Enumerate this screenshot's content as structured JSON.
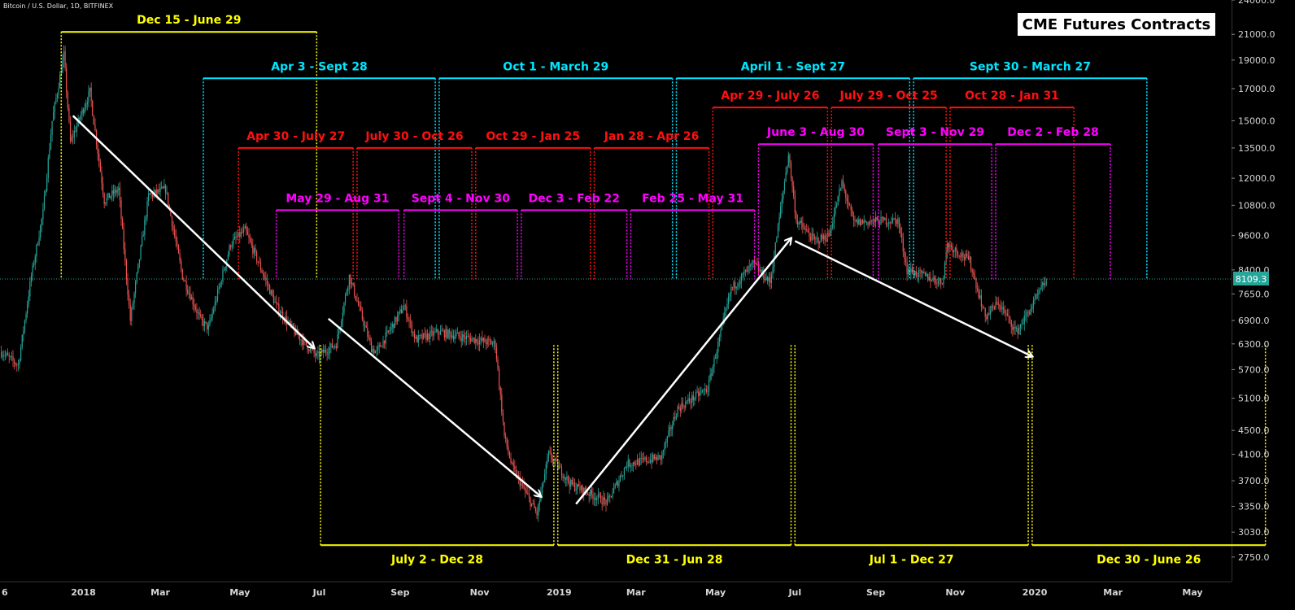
{
  "header": {
    "symbol_line": "Bitcoin / U.S. Dollar, 1D, BITFINEX"
  },
  "title": "CME Futures Contracts",
  "colors": {
    "background": "#000000",
    "yellow": "#ffff00",
    "cyan": "#00e5ff",
    "red": "#ff1010",
    "magenta": "#ff00ff",
    "candle_up": "#26a69a",
    "candle_down": "#ef5350",
    "price_line": "#26a69a",
    "arrow": "#ffffff"
  },
  "chart_data": {
    "type": "candlestick",
    "scale": "log",
    "ylim": [
      2500,
      24000
    ],
    "y_ticks": [
      "24000.0",
      "21000.0",
      "19000.0",
      "17000.0",
      "15000.0",
      "13500.0",
      "12000.0",
      "10800.0",
      "9600.0",
      "8400.0",
      "7650.0",
      "6900.0",
      "6300.0",
      "5700.0",
      "5100.0",
      "4500.0",
      "4100.0",
      "3700.0",
      "3350.0",
      "3030.0",
      "2750.0"
    ],
    "x_ticks": [
      "6",
      "2018",
      "Mar",
      "May",
      "Jul",
      "Sep",
      "Nov",
      "2019",
      "Mar",
      "May",
      "Jul",
      "Sep",
      "Nov",
      "2020",
      "Mar",
      "May"
    ],
    "x_range": [
      "2017-10-29",
      "2020-05-31"
    ],
    "last_price": {
      "value": 8109.3,
      "label": "8109.3"
    },
    "price_path": [
      [
        "2017-10-30",
        6100
      ],
      [
        "2017-11-12",
        5800
      ],
      [
        "2017-11-22",
        8200
      ],
      [
        "2017-12-01",
        10500
      ],
      [
        "2017-12-08",
        15000
      ],
      [
        "2017-12-17",
        19400
      ],
      [
        "2017-12-22",
        13800
      ],
      [
        "2018-01-06",
        16800
      ],
      [
        "2018-01-17",
        11000
      ],
      [
        "2018-01-28",
        11500
      ],
      [
        "2018-02-06",
        6900
      ],
      [
        "2018-02-20",
        11200
      ],
      [
        "2018-03-05",
        11500
      ],
      [
        "2018-03-18",
        8200
      ],
      [
        "2018-04-01",
        6900
      ],
      [
        "2018-04-07",
        6700
      ],
      [
        "2018-04-24",
        9300
      ],
      [
        "2018-05-05",
        9800
      ],
      [
        "2018-05-29",
        7300
      ],
      [
        "2018-06-12",
        6600
      ],
      [
        "2018-06-29",
        6000
      ],
      [
        "2018-07-14",
        6300
      ],
      [
        "2018-07-24",
        8200
      ],
      [
        "2018-08-10",
        6200
      ],
      [
        "2018-08-14",
        6100
      ],
      [
        "2018-09-04",
        7300
      ],
      [
        "2018-09-13",
        6400
      ],
      [
        "2018-10-01",
        6600
      ],
      [
        "2018-11-13",
        6300
      ],
      [
        "2018-11-20",
        4400
      ],
      [
        "2018-11-26",
        3900
      ],
      [
        "2018-12-15",
        3250
      ],
      [
        "2018-12-24",
        4100
      ],
      [
        "2019-01-10",
        3650
      ],
      [
        "2019-02-07",
        3400
      ],
      [
        "2019-02-22",
        3950
      ],
      [
        "2019-03-20",
        4050
      ],
      [
        "2019-04-02",
        4900
      ],
      [
        "2019-04-25",
        5300
      ],
      [
        "2019-05-13",
        7800
      ],
      [
        "2019-05-30",
        8600
      ],
      [
        "2019-06-12",
        8000
      ],
      [
        "2019-06-26",
        13200
      ],
      [
        "2019-07-02",
        10200
      ],
      [
        "2019-07-16",
        9400
      ],
      [
        "2019-07-27",
        9600
      ],
      [
        "2019-08-06",
        11800
      ],
      [
        "2019-08-15",
        10100
      ],
      [
        "2019-09-18",
        10200
      ],
      [
        "2019-09-25",
        8400
      ],
      [
        "2019-10-22",
        8000
      ],
      [
        "2019-10-26",
        9300
      ],
      [
        "2019-11-12",
        8700
      ],
      [
        "2019-11-24",
        7000
      ],
      [
        "2019-12-04",
        7400
      ],
      [
        "2019-12-18",
        6600
      ],
      [
        "2019-12-30",
        7300
      ],
      [
        "2020-01-10",
        8100
      ]
    ],
    "contracts": [
      {
        "label": "Dec 15 - June 29",
        "color": "yellow",
        "start": "2017-12-15",
        "end": "2018-06-29",
        "level": 21200,
        "label_pos": "above"
      },
      {
        "label": "July 2 - Dec 28",
        "color": "yellow",
        "start": "2018-07-02",
        "end": "2018-12-28",
        "level": 2880,
        "label_pos": "below"
      },
      {
        "label": "Dec 31 - Jun 28",
        "color": "yellow",
        "start": "2018-12-31",
        "end": "2019-06-28",
        "level": 2880,
        "label_pos": "below"
      },
      {
        "label": "Jul 1 - Dec 27",
        "color": "yellow",
        "start": "2019-07-01",
        "end": "2019-12-27",
        "level": 2880,
        "label_pos": "below"
      },
      {
        "label": "Dec 30 - June 26",
        "color": "yellow",
        "start": "2019-12-30",
        "end": "2020-06-26",
        "level": 2880,
        "label_pos": "below"
      },
      {
        "label": "Apr 3 - Sept 28",
        "color": "cyan",
        "start": "2018-04-03",
        "end": "2018-09-28",
        "level": 17700,
        "label_pos": "above"
      },
      {
        "label": "Oct 1 - March 29",
        "color": "cyan",
        "start": "2018-10-01",
        "end": "2019-03-29",
        "level": 17700,
        "label_pos": "above"
      },
      {
        "label": "April 1 - Sept 27",
        "color": "cyan",
        "start": "2019-04-01",
        "end": "2019-09-27",
        "level": 17700,
        "label_pos": "above"
      },
      {
        "label": "Sept 30 - March 27",
        "color": "cyan",
        "start": "2019-09-30",
        "end": "2020-03-27",
        "level": 17700,
        "label_pos": "above"
      },
      {
        "label": "Apr 30 - July 27",
        "color": "red",
        "start": "2018-04-30",
        "end": "2018-07-27",
        "level": 13500,
        "label_pos": "above"
      },
      {
        "label": "July 30 - Oct 26",
        "color": "red",
        "start": "2018-07-30",
        "end": "2018-10-26",
        "level": 13500,
        "label_pos": "above"
      },
      {
        "label": "Oct 29 - Jan 25",
        "color": "red",
        "start": "2018-10-29",
        "end": "2019-01-25",
        "level": 13500,
        "label_pos": "above"
      },
      {
        "label": "Jan 28 - Apr 26",
        "color": "red",
        "start": "2019-01-28",
        "end": "2019-04-26",
        "level": 13500,
        "label_pos": "above"
      },
      {
        "label": "Apr 29 - July 26",
        "color": "red",
        "start": "2019-04-29",
        "end": "2019-07-26",
        "level": 15800,
        "label_pos": "above"
      },
      {
        "label": "July 29 - Oct 25",
        "color": "red",
        "start": "2019-07-29",
        "end": "2019-10-25",
        "level": 15800,
        "label_pos": "above"
      },
      {
        "label": "Oct 28 - Jan 31",
        "color": "red",
        "start": "2019-10-28",
        "end": "2020-01-31",
        "level": 15800,
        "label_pos": "above"
      },
      {
        "label": "May 29 - Aug 31",
        "color": "magenta",
        "start": "2018-05-29",
        "end": "2018-08-31",
        "level": 10600,
        "label_pos": "above"
      },
      {
        "label": "Sept 4 - Nov 30",
        "color": "magenta",
        "start": "2018-09-04",
        "end": "2018-11-30",
        "level": 10600,
        "label_pos": "above"
      },
      {
        "label": "Dec 3 - Feb 22",
        "color": "magenta",
        "start": "2018-12-03",
        "end": "2019-02-22",
        "level": 10600,
        "label_pos": "above"
      },
      {
        "label": "Feb 25 - May 31",
        "color": "magenta",
        "start": "2019-02-25",
        "end": "2019-05-31",
        "level": 10600,
        "label_pos": "above"
      },
      {
        "label": "June 3 - Aug 30",
        "color": "magenta",
        "start": "2019-06-03",
        "end": "2019-08-30",
        "level": 13700,
        "label_pos": "above"
      },
      {
        "label": "Sept 3 - Nov 29",
        "color": "magenta",
        "start": "2019-09-03",
        "end": "2019-11-29",
        "level": 13700,
        "label_pos": "above"
      },
      {
        "label": "Dec 2 - Feb 28",
        "color": "magenta",
        "start": "2019-12-02",
        "end": "2020-02-28",
        "level": 13700,
        "label_pos": "above"
      }
    ],
    "trend_arrows": [
      {
        "from": [
          "2017-12-24",
          15300
        ],
        "to": [
          "2018-06-27",
          6200
        ]
      },
      {
        "from": [
          "2018-07-08",
          6950
        ],
        "to": [
          "2018-12-18",
          3480
        ]
      },
      {
        "from": [
          "2019-01-14",
          3380
        ],
        "to": [
          "2019-06-28",
          9500
        ]
      },
      {
        "from": [
          "2019-07-01",
          9400
        ],
        "to": [
          "2019-12-30",
          6000
        ]
      }
    ]
  }
}
